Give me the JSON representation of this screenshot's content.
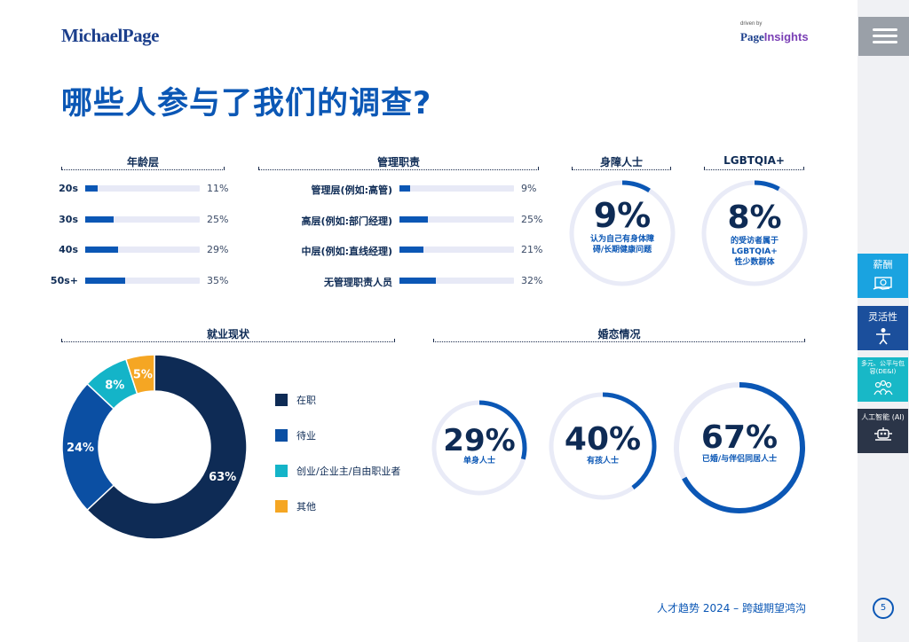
{
  "header": {
    "logo_left": "MichaelPage",
    "logo_right_driven": "driven by",
    "logo_right_page": "Page",
    "logo_right_insights": "Insights"
  },
  "title": "哪些人参与了我们的调查?",
  "age": {
    "heading": "年龄层",
    "rows": [
      {
        "label": "20s",
        "pct_text": "11%",
        "value": 11
      },
      {
        "label": "30s",
        "pct_text": "25%",
        "value": 25
      },
      {
        "label": "40s",
        "pct_text": "29%",
        "value": 29
      },
      {
        "label": "50s+",
        "pct_text": "35%",
        "value": 35
      }
    ]
  },
  "mgmt": {
    "heading": "管理职责",
    "rows": [
      {
        "label": "管理层(例如:高管)",
        "pct_text": "9%",
        "value": 9
      },
      {
        "label": "高层(例如:部门经理)",
        "pct_text": "25%",
        "value": 25
      },
      {
        "label": "中层(例如:直线经理)",
        "pct_text": "21%",
        "value": 21
      },
      {
        "label": "无管理职责人员",
        "pct_text": "32%",
        "value": 32
      }
    ]
  },
  "disability": {
    "heading": "身障人士",
    "big": "9%",
    "value": 9,
    "sub1": "认为自己有身体障",
    "sub2": "碍/长期健康问题"
  },
  "lgbt": {
    "heading": "LGBTQIA+",
    "big": "8%",
    "value": 8,
    "sub1": "的受访者属于",
    "sub2": "LGBTQIA+",
    "sub3": "性少数群体"
  },
  "employment": {
    "heading": "就业现状",
    "slices": [
      {
        "name": "在职",
        "value": 63,
        "label": "63%",
        "color": "#0e2b55"
      },
      {
        "name": "待业",
        "value": 24,
        "label": "24%",
        "color": "#0b4fa3"
      },
      {
        "name": "创业/企业主/自由职业者",
        "value": 8,
        "label": "8%",
        "color": "#14b4c8"
      },
      {
        "name": "其他",
        "value": 5,
        "label": "5%",
        "color": "#f5a623"
      }
    ]
  },
  "marital": {
    "heading": "婚恋情况",
    "items": [
      {
        "big": "29%",
        "value": 29,
        "sub": "单身人士"
      },
      {
        "big": "40%",
        "value": 40,
        "sub": "有孩人士"
      },
      {
        "big": "67%",
        "value": 67,
        "sub": "已婚/与伴侣同居人士"
      }
    ]
  },
  "footer": "人才趋势 2024 – 跨越期望鸿沟",
  "sidebar": {
    "tabs": [
      {
        "label": "薪酬",
        "color": "#1aa3e0",
        "icon": "money-icon"
      },
      {
        "label": "灵活性",
        "color": "#1b4f9c",
        "icon": "person-icon"
      },
      {
        "label": "多元、公平与包容(DE&I)",
        "color": "#18b8c7",
        "icon": "group-icon"
      },
      {
        "label": "人工智能 (AI)",
        "color": "#2b3548",
        "icon": "robot-icon"
      }
    ],
    "page_number": "5"
  },
  "colors": {
    "accent": "#0b57b5",
    "dark": "#0e2b55",
    "ring_track": "#e9ebf7"
  }
}
